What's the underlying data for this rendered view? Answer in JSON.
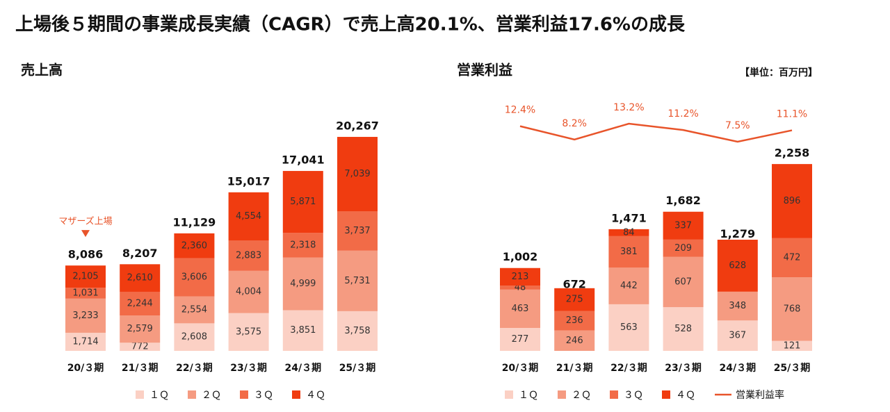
{
  "title": "上場後５期間の事業成長実績（CAGR）で売上高20.1%、営業利益17.6%の成長",
  "unit": "【単位：百万円】",
  "chart_data": [
    {
      "type": "bar",
      "stacked": true,
      "title": "売上高",
      "annotation": "マザーズ上場",
      "categories": [
        "20/３期",
        "21/３期",
        "22/３期",
        "23/３期",
        "24/３期",
        "25/３期"
      ],
      "series": [
        {
          "name": "１Ｑ",
          "color": "#fbd0c4",
          "values": [
            1714,
            772,
            2608,
            3575,
            3851,
            3758
          ],
          "value_labels": [
            "1,714",
            "772",
            "2,608",
            "3,575",
            "3,851",
            "3,758"
          ]
        },
        {
          "name": "２Ｑ",
          "color": "#f59b81",
          "values": [
            3233,
            2579,
            2554,
            4004,
            4999,
            5731
          ],
          "value_labels": [
            "3,233",
            "2,579",
            "2,554",
            "4,004",
            "4,999",
            "5,731"
          ]
        },
        {
          "name": "３Ｑ",
          "color": "#f26b47",
          "values": [
            1031,
            2244,
            3606,
            2883,
            2318,
            3737
          ],
          "value_labels": [
            "1,031",
            "2,244",
            "3,606",
            "2,883",
            "2,318",
            "3,737"
          ]
        },
        {
          "name": "４Ｑ",
          "color": "#f03c10",
          "values": [
            2105,
            2610,
            2360,
            4554,
            5871,
            7039
          ],
          "value_labels": [
            "2,105",
            "2,610",
            "2,360",
            "4,554",
            "5,871",
            "7,039"
          ]
        }
      ],
      "totals": {
        "values": [
          8086,
          8207,
          11129,
          15017,
          17041,
          20267
        ],
        "value_labels": [
          "8,086",
          "8,207",
          "11,129",
          "15,017",
          "17,041",
          "20,267"
        ]
      }
    },
    {
      "type": "bar",
      "stacked": true,
      "title": "営業利益",
      "categories": [
        "20/３期",
        "21/３期",
        "22/３期",
        "23/３期",
        "24/３期",
        "25/３期"
      ],
      "series": [
        {
          "name": "１Ｑ",
          "color": "#fbd0c4",
          "values": [
            277,
            null,
            563,
            528,
            367,
            121
          ]
        },
        {
          "name": "２Ｑ",
          "color": "#f59b81",
          "values": [
            463,
            246,
            442,
            607,
            348,
            768
          ]
        },
        {
          "name": "３Ｑ",
          "color": "#f26b47",
          "values": [
            48,
            236,
            381,
            209,
            null,
            472
          ]
        },
        {
          "name": "４Ｑ",
          "color": "#f03c10",
          "values": [
            213,
            275,
            84,
            337,
            628,
            896
          ]
        }
      ],
      "totals": {
        "values": [
          1002,
          672,
          1471,
          1682,
          1279,
          2258
        ],
        "value_labels": [
          "1,002",
          "672",
          "1,471",
          "1,682",
          "1,279",
          "2,258"
        ]
      },
      "line": {
        "name": "営業利益率",
        "color": "#e8542a",
        "values": [
          12.4,
          8.2,
          13.2,
          11.2,
          7.5,
          11.1
        ],
        "value_labels": [
          "12.4%",
          "8.2%",
          "13.2%",
          "11.2%",
          "7.5%",
          "11.1%"
        ]
      }
    }
  ]
}
